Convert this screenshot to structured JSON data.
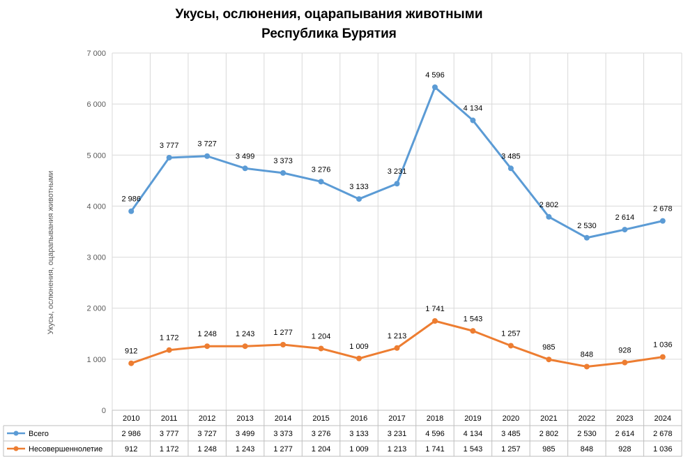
{
  "chart_data": {
    "type": "line",
    "title": "Укусы, ослюнения, оцарапывания животными",
    "subtitle": "Республика Бурятия",
    "ylabel": "Укусы, ослюнения, оцарапывания животными",
    "xlabel": "",
    "ylim": [
      0,
      7000
    ],
    "yticks": [
      0,
      1000,
      2000,
      3000,
      4000,
      5000,
      6000,
      7000
    ],
    "ytick_labels": [
      "0",
      "1 000",
      "2 000",
      "3 000",
      "4 000",
      "5 000",
      "6 000",
      "7 000"
    ],
    "categories": [
      "2010",
      "2011",
      "2012",
      "2013",
      "2014",
      "2015",
      "2016",
      "2017",
      "2018",
      "2019",
      "2020",
      "2021",
      "2022",
      "2023",
      "2024"
    ],
    "series": [
      {
        "name": "Всего",
        "color": "#5B9BD5",
        "values": [
          2986,
          3777,
          3727,
          3499,
          3373,
          3276,
          3133,
          3231,
          4596,
          4134,
          3485,
          2802,
          2530,
          2614,
          2678
        ],
        "plot_values": [
          3900,
          4950,
          4980,
          4740,
          4650,
          4480,
          4140,
          4440,
          6330,
          5680,
          4740,
          3790,
          3380,
          3540,
          3710
        ],
        "labels": [
          "2 986",
          "3 777",
          "3 727",
          "3 499",
          "3 373",
          "3 276",
          "3 133",
          "3 231",
          "4 596",
          "4 134",
          "3 485",
          "2 802",
          "2 530",
          "2 614",
          "2 678"
        ]
      },
      {
        "name": "Несовершеннолетие",
        "color": "#ED7D31",
        "values": [
          912,
          1172,
          1248,
          1243,
          1277,
          1204,
          1009,
          1213,
          1741,
          1543,
          1257,
          985,
          848,
          928,
          1036
        ],
        "plot_values": [
          920,
          1180,
          1255,
          1255,
          1285,
          1210,
          1015,
          1220,
          1750,
          1555,
          1265,
          995,
          855,
          935,
          1045
        ],
        "labels": [
          "912",
          "1 172",
          "1 248",
          "1 243",
          "1 277",
          "1 204",
          "1 009",
          "1 213",
          "1 741",
          "1 543",
          "1 257",
          "985",
          "848",
          "928",
          "1 036"
        ]
      }
    ],
    "grid": true,
    "legend": "data-table"
  }
}
